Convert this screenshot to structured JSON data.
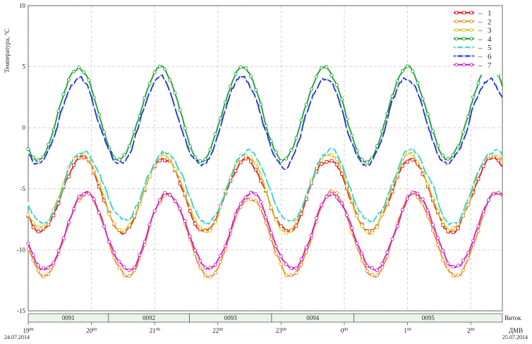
{
  "chart_data": {
    "type": "line",
    "ylabel": "Температура, °C",
    "ylim": [
      -15,
      10
    ],
    "yticks": [
      10,
      5,
      0,
      -5,
      -10,
      -15
    ],
    "xlim_hours": [
      19,
      26.5
    ],
    "grid": true,
    "legend_position": "top-right",
    "x_ticks": [
      {
        "main": "19",
        "sup": "00",
        "h": 19
      },
      {
        "main": "20",
        "sup": "00",
        "h": 20
      },
      {
        "main": "21",
        "sup": "00",
        "h": 21
      },
      {
        "main": "22",
        "sup": "00",
        "h": 22
      },
      {
        "main": "23",
        "sup": "00",
        "h": 23
      },
      {
        "main": "0",
        "sup": "00",
        "h": 24
      },
      {
        "main": "1",
        "sup": "00",
        "h": 25
      },
      {
        "main": "2",
        "sup": "00",
        "h": 26
      }
    ],
    "x_unit_label": "ДМВ",
    "orbit_label": "Виток",
    "orbits": [
      {
        "label": "0091",
        "start": 19.0,
        "end": 20.27
      },
      {
        "label": "0092",
        "start": 20.27,
        "end": 21.55
      },
      {
        "label": "0093",
        "start": 21.55,
        "end": 22.85
      },
      {
        "label": "0094",
        "start": 22.85,
        "end": 24.15
      },
      {
        "label": "0095",
        "start": 24.15,
        "end": 26.5
      }
    ],
    "date_start": "24.07.2014",
    "date_end": "25.07.2014",
    "period_hours": 1.3,
    "series": [
      {
        "name": "1",
        "color": "#e0201c",
        "marker": "square",
        "base": -5.5,
        "amp": 3.0,
        "phase": 0.4,
        "noise": 0.25,
        "seed": 11
      },
      {
        "name": "2",
        "color": "#f08a1c",
        "marker": "circle",
        "base": -8.8,
        "amp": 3.4,
        "phase": 0.45,
        "noise": 0.25,
        "seed": 23
      },
      {
        "name": "3",
        "color": "#d8c428",
        "marker": "circle",
        "base": -5.3,
        "amp": 3.2,
        "phase": 0.4,
        "noise": 0.25,
        "seed": 37
      },
      {
        "name": "4",
        "color": "#18a02c",
        "marker": "circle",
        "base": 1.1,
        "amp": 3.8,
        "phase": 0.36,
        "noise": 0.22,
        "seed": 41
      },
      {
        "name": "5",
        "color": "#30d0d0",
        "marker": "plus",
        "base": -4.8,
        "amp": 2.9,
        "phase": 0.42,
        "noise": 0.28,
        "seed": 53
      },
      {
        "name": "6",
        "color": "#1a2ee0",
        "marker": "plus",
        "base": 0.5,
        "amp": 3.5,
        "phase": 0.36,
        "noise": 0.28,
        "seed": 67
      },
      {
        "name": "7",
        "color": "#d01cd0",
        "marker": "circle",
        "base": -8.5,
        "amp": 3.1,
        "phase": 0.45,
        "noise": 0.25,
        "seed": 79
      }
    ]
  }
}
